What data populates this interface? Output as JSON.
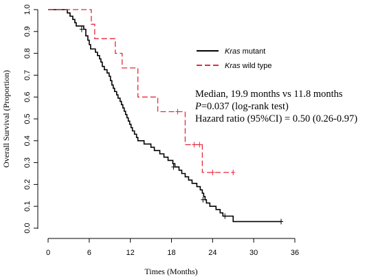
{
  "chart_data": {
    "type": "line",
    "subtype": "kaplan-meier",
    "xlabel": "Times (Months)",
    "ylabel": "Overall Survival (Proportion)",
    "xlim": [
      0,
      36
    ],
    "ylim": [
      0,
      1
    ],
    "xticks": [
      "0",
      "6",
      "12",
      "18",
      "24",
      "30",
      "36"
    ],
    "yticks": [
      "0.0",
      "0.1",
      "0.2",
      "0.3",
      "0.4",
      "0.5",
      "0.6",
      "0.7",
      "0.8",
      "0.9",
      "1.0"
    ],
    "grid": false,
    "legend_position": "top-right",
    "annotation": {
      "line1": "Median, 19.9 months vs 11.8 months",
      "line2_italic": "P",
      "line2_rest": "=0.037 (log-rank test)",
      "line3": "Hazard ratio (95%CI) = 0.50 (0.26-0.97)"
    },
    "series": [
      {
        "name_italic": "Kras",
        "name_rest": " mutant",
        "color": "#000000",
        "dash": "solid",
        "steps": [
          [
            0,
            1.0
          ],
          [
            2.8,
            0.985
          ],
          [
            3.2,
            0.97
          ],
          [
            3.6,
            0.955
          ],
          [
            3.9,
            0.94
          ],
          [
            4.1,
            0.925
          ],
          [
            5.2,
            0.91
          ],
          [
            5.5,
            0.88
          ],
          [
            5.8,
            0.86
          ],
          [
            6.0,
            0.84
          ],
          [
            6.2,
            0.82
          ],
          [
            6.9,
            0.805
          ],
          [
            7.2,
            0.79
          ],
          [
            7.5,
            0.775
          ],
          [
            7.7,
            0.76
          ],
          [
            7.9,
            0.74
          ],
          [
            8.2,
            0.725
          ],
          [
            8.6,
            0.71
          ],
          [
            8.9,
            0.695
          ],
          [
            9.1,
            0.675
          ],
          [
            9.3,
            0.655
          ],
          [
            9.5,
            0.64
          ],
          [
            9.7,
            0.625
          ],
          [
            10.0,
            0.61
          ],
          [
            10.2,
            0.595
          ],
          [
            10.5,
            0.58
          ],
          [
            10.7,
            0.565
          ],
          [
            10.9,
            0.55
          ],
          [
            11.1,
            0.535
          ],
          [
            11.3,
            0.52
          ],
          [
            11.5,
            0.505
          ],
          [
            11.7,
            0.49
          ],
          [
            11.9,
            0.475
          ],
          [
            12.1,
            0.46
          ],
          [
            12.3,
            0.445
          ],
          [
            12.6,
            0.43
          ],
          [
            12.9,
            0.415
          ],
          [
            13.1,
            0.4
          ],
          [
            14.0,
            0.385
          ],
          [
            15.0,
            0.37
          ],
          [
            15.5,
            0.355
          ],
          [
            16.3,
            0.34
          ],
          [
            16.9,
            0.325
          ],
          [
            17.5,
            0.31
          ],
          [
            18.2,
            0.295
          ],
          [
            18.5,
            0.28
          ],
          [
            19.1,
            0.265
          ],
          [
            19.5,
            0.25
          ],
          [
            20.0,
            0.235
          ],
          [
            20.5,
            0.22
          ],
          [
            21.0,
            0.205
          ],
          [
            21.7,
            0.19
          ],
          [
            22.2,
            0.175
          ],
          [
            22.5,
            0.16
          ],
          [
            22.7,
            0.145
          ],
          [
            22.9,
            0.13
          ],
          [
            23.1,
            0.115
          ],
          [
            23.6,
            0.1
          ],
          [
            24.5,
            0.085
          ],
          [
            25.1,
            0.07
          ],
          [
            25.5,
            0.055
          ],
          [
            27.0,
            0.03
          ],
          [
            34.0,
            0.03
          ]
        ],
        "censors": [
          [
            4.9,
            0.91
          ],
          [
            18.3,
            0.28
          ],
          [
            22.6,
            0.13
          ],
          [
            25.8,
            0.055
          ],
          [
            34.0,
            0.03
          ]
        ]
      },
      {
        "name_italic": "Kras",
        "name_rest": " wild type",
        "color": "#e8273a",
        "dash": "dashed",
        "steps": [
          [
            0,
            1.0
          ],
          [
            6.3,
            0.933
          ],
          [
            6.8,
            0.867
          ],
          [
            9.8,
            0.8
          ],
          [
            10.8,
            0.733
          ],
          [
            13.1,
            0.6
          ],
          [
            16.0,
            0.533
          ],
          [
            20.0,
            0.382
          ],
          [
            22.5,
            0.255
          ],
          [
            27.0,
            0.255
          ]
        ],
        "censors": [
          [
            18.9,
            0.533
          ],
          [
            21.3,
            0.382
          ],
          [
            22.1,
            0.382
          ],
          [
            24.0,
            0.255
          ],
          [
            27.0,
            0.255
          ]
        ]
      }
    ]
  }
}
